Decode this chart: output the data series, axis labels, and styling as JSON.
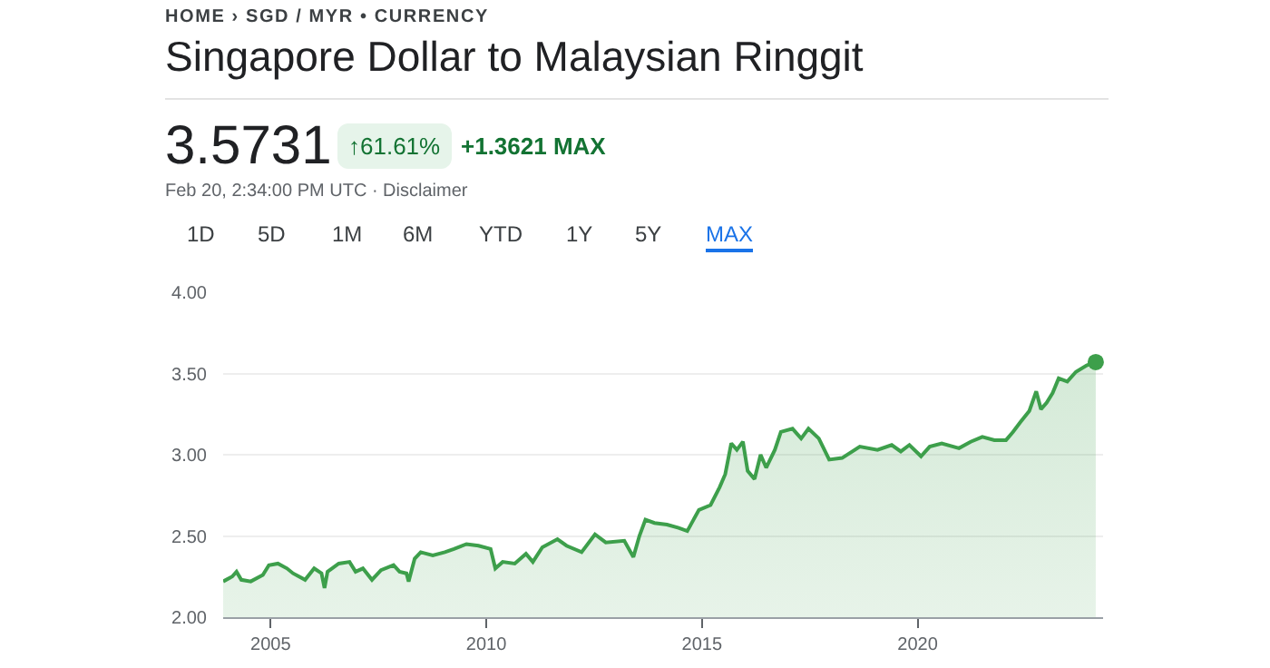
{
  "chart_data": {
    "type": "area",
    "title": "Singapore Dollar to Malaysian Ringgit",
    "annotations": [
      "HOME › SGD / MYR • CURRENCY",
      "3.5731",
      "↑61.61%",
      "+1.3621 MAX",
      "Feb 20, 2:34:00 PM UTC · Disclaimer",
      "1D",
      "5D",
      "1M",
      "6M",
      "YTD",
      "1Y",
      "5Y",
      "MAX"
    ],
    "series": [
      {
        "color": "#3d9f4b",
        "marker": "none",
        "x": [
          2003.9,
          2004.11,
          2004.21,
          2004.32,
          2004.54,
          2004.82,
          2004.96,
          2005.17,
          2005.38,
          2005.52,
          2005.8,
          2006.01,
          2006.18,
          2006.25,
          2006.32,
          2006.58,
          2006.83,
          2006.97,
          2007.14,
          2007.35,
          2007.56,
          2007.85,
          2007.99,
          2008.15,
          2008.2,
          2008.34,
          2008.48,
          2008.76,
          2009.04,
          2009.25,
          2009.54,
          2009.82,
          2010.1,
          2010.21,
          2010.38,
          2010.66,
          2010.92,
          2011.08,
          2011.3,
          2011.65,
          2011.86,
          2012.21,
          2012.52,
          2012.77,
          2013.2,
          2013.41,
          2013.55,
          2013.69,
          2013.9,
          2014.19,
          2014.46,
          2014.66,
          2014.93,
          2015.2,
          2015.41,
          2015.54,
          2015.68,
          2015.81,
          2015.95,
          2016.06,
          2016.22,
          2016.36,
          2016.49,
          2016.69,
          2016.83,
          2017.1,
          2017.3,
          2017.47,
          2017.71,
          2017.95,
          2018.25,
          2018.66,
          2019.07,
          2019.4,
          2019.61,
          2019.81,
          2020.08,
          2020.28,
          2020.56,
          2020.96,
          2021.23,
          2021.5,
          2021.78,
          2022.05,
          2022.21,
          2022.38,
          2022.59,
          2022.75,
          2022.86,
          2022.99,
          2023.13,
          2023.27,
          2023.47,
          2023.67,
          2023.92,
          2024.13
        ],
        "values": [
          2.22,
          2.25,
          2.28,
          2.23,
          2.22,
          2.26,
          2.32,
          2.33,
          2.3,
          2.27,
          2.23,
          2.3,
          2.27,
          2.18,
          2.28,
          2.33,
          2.34,
          2.28,
          2.3,
          2.23,
          2.29,
          2.32,
          2.28,
          2.27,
          2.22,
          2.36,
          2.4,
          2.38,
          2.4,
          2.42,
          2.45,
          2.44,
          2.42,
          2.3,
          2.34,
          2.33,
          2.39,
          2.34,
          2.43,
          2.48,
          2.44,
          2.4,
          2.51,
          2.46,
          2.47,
          2.37,
          2.5,
          2.6,
          2.58,
          2.57,
          2.55,
          2.53,
          2.66,
          2.69,
          2.8,
          2.88,
          3.07,
          3.03,
          3.08,
          2.9,
          2.85,
          3.0,
          2.92,
          3.03,
          3.14,
          3.16,
          3.1,
          3.16,
          3.1,
          2.97,
          2.98,
          3.05,
          3.03,
          3.06,
          3.02,
          3.06,
          2.99,
          3.05,
          3.07,
          3.04,
          3.08,
          3.11,
          3.09,
          3.09,
          3.14,
          3.2,
          3.27,
          3.39,
          3.28,
          3.32,
          3.38,
          3.47,
          3.45,
          3.51,
          3.55,
          3.57
        ]
      },
      {
        "type": "scatter",
        "color": "#3d9f4b",
        "marker": "circle",
        "x": [
          2024.13
        ],
        "values": [
          3.57
        ]
      }
    ],
    "xlim": [
      2003.9,
      2024.3
    ],
    "xticks": [
      2005,
      2010,
      2015,
      2020
    ],
    "ylim": [
      2.0,
      4.0
    ],
    "yticks": [
      {
        "value": 2,
        "label": "2.00"
      },
      {
        "value": 2.5,
        "label": "2.50"
      },
      {
        "value": 3,
        "label": "3.00"
      },
      {
        "value": 3.5,
        "label": "3.50"
      },
      {
        "value": 4,
        "label": "4.00"
      }
    ],
    "grid": "y"
  }
}
